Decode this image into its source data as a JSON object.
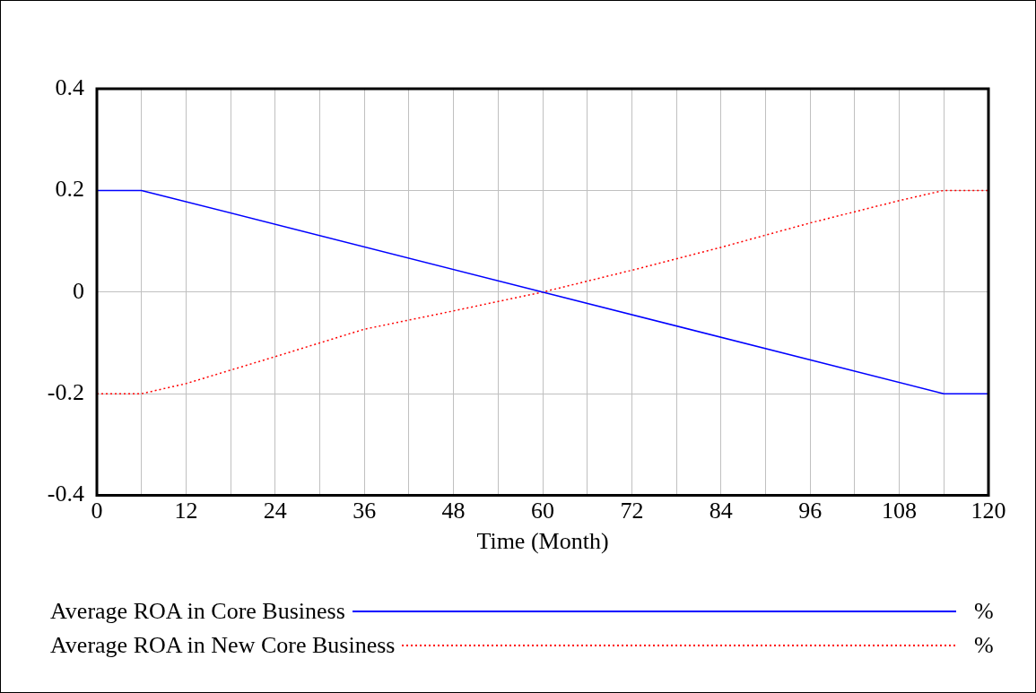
{
  "chart_data": {
    "type": "line",
    "xlabel": "Time (Month)",
    "xlim": [
      0,
      120
    ],
    "xticks": [
      0,
      {
        "value": 6,
        "label": null
      },
      12,
      {
        "value": 18,
        "label": null
      },
      24,
      {
        "value": 30,
        "label": null
      },
      36,
      {
        "value": 42,
        "label": null
      },
      48,
      {
        "value": 54,
        "label": null
      },
      60,
      {
        "value": 66,
        "label": null
      },
      72,
      {
        "value": 78,
        "label": null
      },
      84,
      {
        "value": 90,
        "label": null
      },
      96,
      {
        "value": 102,
        "label": null
      },
      108,
      {
        "value": 114,
        "label": null
      },
      120
    ],
    "ylim": [
      -0.4,
      0.4
    ],
    "yticks": [
      -0.4,
      -0.2,
      0,
      0.2,
      0.4
    ],
    "grid": true,
    "legend": "bottom",
    "marker": "none",
    "annotations": [
      "%",
      "%"
    ],
    "series": [
      {
        "name": "Average ROA in Core Business",
        "color": "#0000ff",
        "line_style": "solid",
        "x": [
          0,
          6,
          114,
          120
        ],
        "values": [
          0.2,
          0.2,
          -0.2,
          -0.2
        ]
      },
      {
        "name": "Average ROA in New Core Business",
        "color": "#ff0000",
        "line_style": "dotted",
        "x": [
          0,
          6,
          12,
          24,
          36,
          48,
          60,
          72,
          84,
          96,
          108,
          114,
          120
        ],
        "values": [
          -0.2,
          -0.2,
          -0.18,
          -0.127,
          -0.073,
          -0.037,
          0,
          0.043,
          0.088,
          0.136,
          0.18,
          0.2,
          0.2
        ]
      }
    ]
  }
}
